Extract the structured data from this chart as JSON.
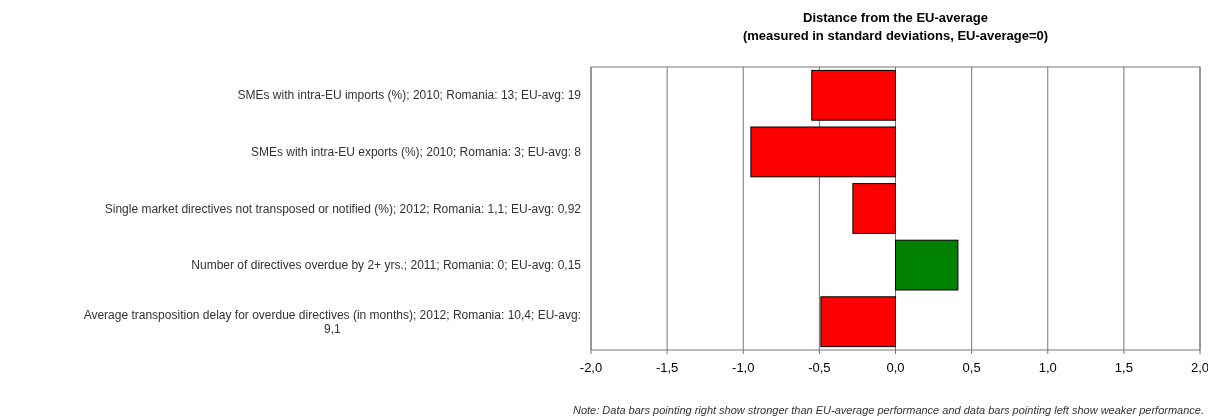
{
  "chart_data": {
    "type": "bar",
    "orientation": "horizontal",
    "title": "Distance from the EU-average",
    "subtitle": "(measured in standard deviations, EU-average=0)",
    "categories": [
      "SMEs with intra-EU imports (%); 2010; Romania: 13; EU-avg: 19",
      "SMEs with intra-EU exports (%); 2010; Romania: 3; EU-avg: 8",
      "Single market directives not transposed or notified (%); 2012; Romania: 1,1; EU-avg: 0,92",
      "Number of directives overdue by 2+ yrs.; 2011; Romania: 0; EU-avg: 0,15",
      "Average transposition delay for overdue directives (in months); 2012; Romania: 10,4; EU-avg: 9,1"
    ],
    "values": [
      -0.55,
      -0.95,
      -0.28,
      0.41,
      -0.49
    ],
    "colors": [
      "#ff0000",
      "#ff0000",
      "#ff0000",
      "#008000",
      "#ff0000"
    ],
    "xlim": [
      -2,
      2
    ],
    "xticks": [
      {
        "value": -2,
        "label": "-2,0"
      },
      {
        "value": -1.5,
        "label": "-1,5"
      },
      {
        "value": -1,
        "label": "-1,0"
      },
      {
        "value": -0.5,
        "label": "-0,5"
      },
      {
        "value": 0,
        "label": "0,0"
      },
      {
        "value": 0.5,
        "label": "0,5"
      },
      {
        "value": 1,
        "label": "1,0"
      },
      {
        "value": 1.5,
        "label": "1,5"
      },
      {
        "value": 2,
        "label": "2,0"
      }
    ],
    "grid": "x",
    "annotations": [
      "Note: Data bars pointing right show stronger than EU-average performance and data bars pointing left show weaker performance."
    ]
  }
}
